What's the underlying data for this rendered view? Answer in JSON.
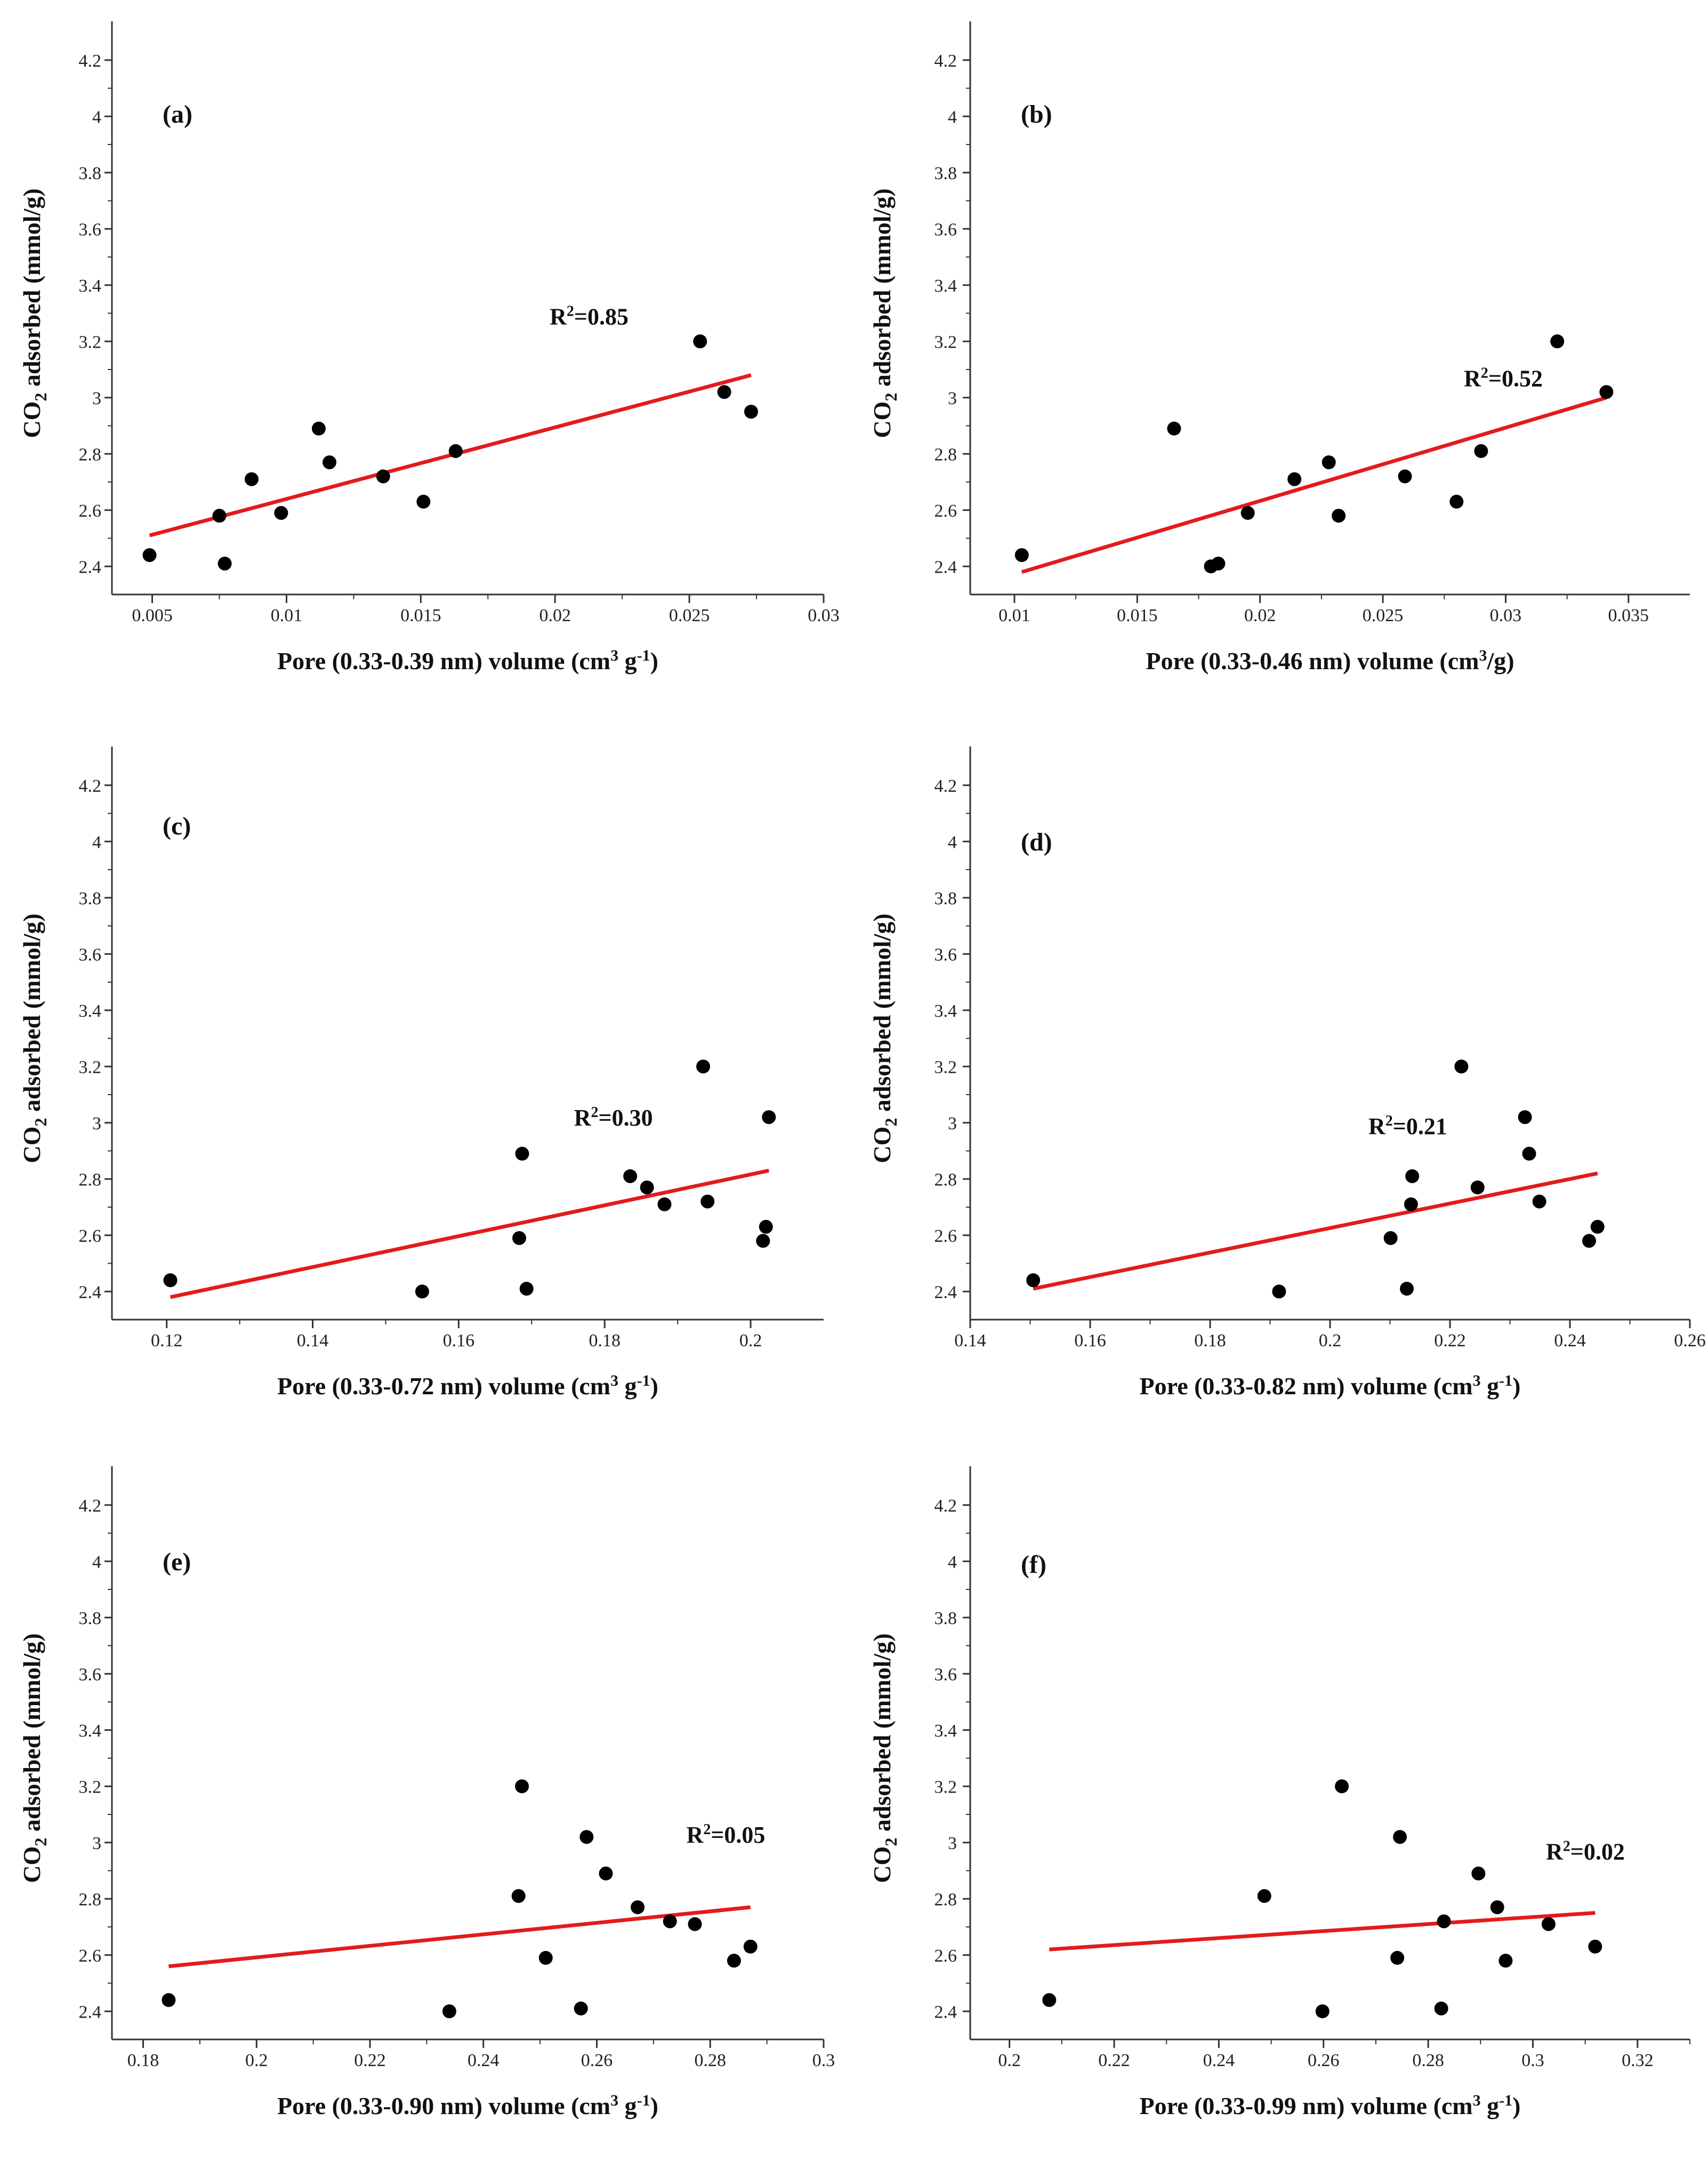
{
  "chart_data": [
    {
      "type": "scatter",
      "panel": "(a)",
      "xlabel_prefix": "Pore (0.33-0.39 nm)  volume  (cm",
      "xlabel_sup1": "3",
      "xlabel_mid": " g",
      "xlabel_sup2": "-1",
      "xlabel_suffix": ")",
      "ylabel": "CO2 adsorbed (mmol/g)",
      "xlim": [
        0.0035,
        0.03
      ],
      "ylim": [
        2.3,
        4.3
      ],
      "xticks": [
        0.005,
        0.01,
        0.015,
        0.02,
        0.025,
        0.03
      ],
      "xtick_labels": [
        "0.005",
        "0.01",
        "0.015",
        "0.02",
        "0.025",
        "0.03"
      ],
      "yticks": [
        2.4,
        2.6,
        2.8,
        3.0,
        3.2,
        3.4,
        3.6,
        3.8,
        4.0,
        4.2
      ],
      "ytick_labels": [
        "2.4",
        "2.6",
        "2.8",
        "3",
        "3.2",
        "3.4",
        "3.6",
        "3.8",
        "4",
        "4.2"
      ],
      "points": [
        [
          0.0049,
          2.44
        ],
        [
          0.0075,
          2.58
        ],
        [
          0.0077,
          2.41
        ],
        [
          0.0087,
          2.71
        ],
        [
          0.0098,
          2.59
        ],
        [
          0.0112,
          2.89
        ],
        [
          0.0116,
          2.77
        ],
        [
          0.0136,
          2.72
        ],
        [
          0.0151,
          2.63
        ],
        [
          0.0163,
          2.81
        ],
        [
          0.0254,
          3.2
        ],
        [
          0.0263,
          3.02
        ],
        [
          0.0273,
          2.95
        ]
      ],
      "fit_line": [
        [
          0.0049,
          2.51
        ],
        [
          0.0273,
          3.08
        ]
      ],
      "r2": "0.85",
      "r2_pos": [
        0.0198,
        3.26
      ]
    },
    {
      "type": "scatter",
      "panel": "(b)",
      "xlabel_prefix": "Pore (0.33-0.46 nm)  volume  (cm",
      "xlabel_sup1": "3",
      "xlabel_mid": "/g)",
      "xlabel_sup2": "",
      "xlabel_suffix": "",
      "ylabel": "CO2 adsorbed (mmol/g)",
      "xlim": [
        0.0082,
        0.0375
      ],
      "ylim": [
        2.3,
        4.3
      ],
      "xticks": [
        0.01,
        0.015,
        0.02,
        0.025,
        0.03,
        0.035
      ],
      "xtick_labels": [
        "0.01",
        "0.015",
        "0.02",
        "0.025",
        "0.03",
        "0.035"
      ],
      "yticks": [
        2.4,
        2.6,
        2.8,
        3.0,
        3.2,
        3.4,
        3.6,
        3.8,
        4.0,
        4.2
      ],
      "ytick_labels": [
        "2.4",
        "2.6",
        "2.8",
        "3",
        "3.2",
        "3.4",
        "3.6",
        "3.8",
        "4",
        "4.2"
      ],
      "points": [
        [
          0.0103,
          2.44
        ],
        [
          0.0165,
          2.89
        ],
        [
          0.018,
          2.4
        ],
        [
          0.0183,
          2.41
        ],
        [
          0.0195,
          2.59
        ],
        [
          0.0214,
          2.71
        ],
        [
          0.0228,
          2.77
        ],
        [
          0.0232,
          2.58
        ],
        [
          0.0259,
          2.72
        ],
        [
          0.028,
          2.63
        ],
        [
          0.029,
          2.81
        ],
        [
          0.0321,
          3.2
        ],
        [
          0.0341,
          3.02
        ]
      ],
      "fit_line": [
        [
          0.0103,
          2.38
        ],
        [
          0.0341,
          3.0
        ]
      ],
      "r2": "0.52",
      "r2_pos": [
        0.0283,
        3.04
      ]
    },
    {
      "type": "scatter",
      "panel": "(c)",
      "xlabel_prefix": "Pore (0.33-0.72 nm)  volume  (cm",
      "xlabel_sup1": "3",
      "xlabel_mid": " g",
      "xlabel_sup2": "-1",
      "xlabel_suffix": ")",
      "ylabel": "CO2 adsorbed (mmol/g)",
      "xlim": [
        0.1125,
        0.21
      ],
      "ylim": [
        2.3,
        4.3
      ],
      "xticks": [
        0.12,
        0.14,
        0.16,
        0.18,
        0.2
      ],
      "xtick_labels": [
        "0.12",
        "0.14",
        "0.16",
        "0.18",
        "0.2"
      ],
      "yticks": [
        2.4,
        2.6,
        2.8,
        3.0,
        3.2,
        3.4,
        3.6,
        3.8,
        4.0,
        4.2
      ],
      "ytick_labels": [
        "2.4",
        "2.6",
        "2.8",
        "3",
        "3.2",
        "3.4",
        "3.6",
        "3.8",
        "4",
        "4.2"
      ],
      "points": [
        [
          0.1205,
          2.44
        ],
        [
          0.155,
          2.4
        ],
        [
          0.1683,
          2.59
        ],
        [
          0.1687,
          2.89
        ],
        [
          0.1693,
          2.41
        ],
        [
          0.1835,
          2.81
        ],
        [
          0.1858,
          2.77
        ],
        [
          0.1882,
          2.71
        ],
        [
          0.1935,
          3.2
        ],
        [
          0.1941,
          2.72
        ],
        [
          0.2017,
          2.58
        ],
        [
          0.2021,
          2.63
        ],
        [
          0.2025,
          3.02
        ]
      ],
      "fit_line": [
        [
          0.1205,
          2.38
        ],
        [
          0.2025,
          2.83
        ]
      ],
      "r2": "0.30",
      "r2_pos": [
        0.1758,
        2.99
      ]
    },
    {
      "type": "scatter",
      "panel": "(d)",
      "xlabel_prefix": "Pore (0.33-0.82 nm)  volume  (cm",
      "xlabel_sup1": "3",
      "xlabel_mid": " g",
      "xlabel_sup2": "-1",
      "xlabel_suffix": ")",
      "ylabel": "CO2 adsorbed (mmol/g)",
      "xlim": [
        0.14,
        0.26
      ],
      "ylim": [
        2.3,
        4.3
      ],
      "xticks": [
        0.14,
        0.16,
        0.18,
        0.2,
        0.22,
        0.24,
        0.26
      ],
      "xtick_labels": [
        "0.14",
        "0.16",
        "0.18",
        "0.2",
        "0.22",
        "0.24",
        "0.26"
      ],
      "yticks": [
        2.4,
        2.6,
        2.8,
        3.0,
        3.2,
        3.4,
        3.6,
        3.8,
        4.0,
        4.2
      ],
      "ytick_labels": [
        "2.4",
        "2.6",
        "2.8",
        "3",
        "3.2",
        "3.4",
        "3.6",
        "3.8",
        "4",
        "4.2"
      ],
      "points": [
        [
          0.1505,
          2.44
        ],
        [
          0.1915,
          2.4
        ],
        [
          0.2101,
          2.59
        ],
        [
          0.2128,
          2.41
        ],
        [
          0.2135,
          2.71
        ],
        [
          0.2137,
          2.81
        ],
        [
          0.2219,
          3.2
        ],
        [
          0.2246,
          2.77
        ],
        [
          0.2325,
          3.02
        ],
        [
          0.2332,
          2.89
        ],
        [
          0.2349,
          2.72
        ],
        [
          0.2432,
          2.58
        ],
        [
          0.2446,
          2.63
        ]
      ],
      "fit_line": [
        [
          0.1505,
          2.41
        ],
        [
          0.2446,
          2.82
        ]
      ],
      "r2": "0.21",
      "r2_pos": [
        0.2064,
        2.96
      ]
    },
    {
      "type": "scatter",
      "panel": "(e)",
      "xlabel_prefix": "Pore (0.33-0.90 nm)  volume  (cm",
      "xlabel_sup1": "3",
      "xlabel_mid": " g",
      "xlabel_sup2": "-1",
      "xlabel_suffix": ")",
      "ylabel": "CO2 adsorbed (mmol/g)",
      "xlim": [
        0.1745,
        0.3
      ],
      "ylim": [
        2.3,
        4.3
      ],
      "xticks": [
        0.18,
        0.2,
        0.22,
        0.24,
        0.26,
        0.28,
        0.3
      ],
      "xtick_labels": [
        "0.18",
        "0.2",
        "0.22",
        "0.24",
        "0.26",
        "0.28",
        "0.3"
      ],
      "yticks": [
        2.4,
        2.6,
        2.8,
        3.0,
        3.2,
        3.4,
        3.6,
        3.8,
        4.0,
        4.2
      ],
      "ytick_labels": [
        "2.4",
        "2.6",
        "2.8",
        "3",
        "3.2",
        "3.4",
        "3.6",
        "3.8",
        "4",
        "4.2"
      ],
      "points": [
        [
          0.1845,
          2.44
        ],
        [
          0.234,
          2.4
        ],
        [
          0.2462,
          2.81
        ],
        [
          0.2468,
          3.2
        ],
        [
          0.251,
          2.59
        ],
        [
          0.2572,
          2.41
        ],
        [
          0.2582,
          3.02
        ],
        [
          0.2616,
          2.89
        ],
        [
          0.2672,
          2.77
        ],
        [
          0.2729,
          2.72
        ],
        [
          0.2773,
          2.71
        ],
        [
          0.2842,
          2.58
        ],
        [
          0.2871,
          2.63
        ]
      ],
      "fit_line": [
        [
          0.1845,
          2.56
        ],
        [
          0.2871,
          2.77
        ]
      ],
      "r2": "0.05",
      "r2_pos": [
        0.2758,
        3.0
      ]
    },
    {
      "type": "scatter",
      "panel": "(f)",
      "xlabel_prefix": "Pore (0.33-0.99 nm)  volume  (cm",
      "xlabel_sup1": "3",
      "xlabel_mid": " g",
      "xlabel_sup2": "-1",
      "xlabel_suffix": ")",
      "ylabel": "CO2 adsorbed (mmol/g)",
      "xlim": [
        0.1925,
        0.33
      ],
      "ylim": [
        2.3,
        4.3
      ],
      "xticks": [
        0.2,
        0.22,
        0.24,
        0.26,
        0.28,
        0.3,
        0.32
      ],
      "xtick_labels": [
        "0.2",
        "0.22",
        "0.24",
        "0.26",
        "0.28",
        "0.3",
        "0.32"
      ],
      "yticks": [
        2.4,
        2.6,
        2.8,
        3.0,
        3.2,
        3.4,
        3.6,
        3.8,
        4.0,
        4.2
      ],
      "ytick_labels": [
        "2.4",
        "2.6",
        "2.8",
        "3",
        "3.2",
        "3.4",
        "3.6",
        "3.8",
        "4",
        "4.2"
      ],
      "points": [
        [
          0.2076,
          2.44
        ],
        [
          0.2487,
          2.81
        ],
        [
          0.2598,
          2.4
        ],
        [
          0.2635,
          3.2
        ],
        [
          0.2741,
          2.59
        ],
        [
          0.2746,
          3.02
        ],
        [
          0.2825,
          2.41
        ],
        [
          0.283,
          2.72
        ],
        [
          0.2896,
          2.89
        ],
        [
          0.2932,
          2.77
        ],
        [
          0.2948,
          2.58
        ],
        [
          0.303,
          2.71
        ],
        [
          0.3119,
          2.63
        ]
      ],
      "fit_line": [
        [
          0.2076,
          2.62
        ],
        [
          0.3119,
          2.75
        ]
      ],
      "r2": "0.02",
      "r2_pos": [
        0.3025,
        2.94
      ]
    }
  ],
  "colors": {
    "points": "#000000",
    "fit_line": "#e31b1b",
    "axes": "#333333",
    "background": "#ffffff"
  }
}
